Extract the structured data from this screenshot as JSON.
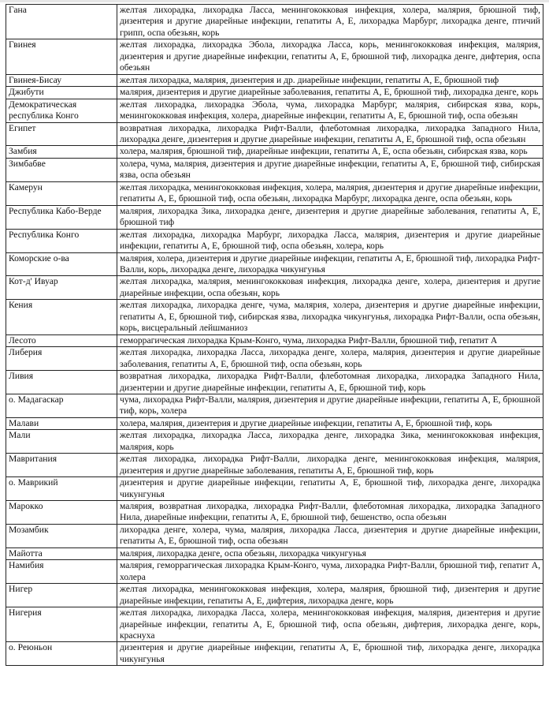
{
  "rows": [
    {
      "country": "Гана",
      "diseases": "желтая лихорадка, лихорадка Ласса, менингококковая инфекция, холера, малярия, брюшной тиф, дизентерия и другие диарейные инфекции, гепатиты А, Е, лихорадка Марбург, лихорадка денге, птичий грипп, оспа обезьян, корь"
    },
    {
      "country": "Гвинея",
      "diseases": "желтая лихорадка, лихорадка Эбола, лихорадка Ласса, корь, менингококковая инфекция, малярия, дизентерия и другие диарейные инфекции, гепатиты А, Е, брюшной тиф, лихорадка денге, дифтерия, оспа обезьян"
    },
    {
      "country": "Гвинея-Бисау",
      "diseases": "желтая лихорадка, малярия, дизентерия и др. диарейные инфекции, гепатиты А, Е, брюшной тиф"
    },
    {
      "country": "Джибути",
      "diseases": "малярия, дизентерия и другие диарейные заболевания, гепатиты А, Е, брюшной тиф, лихорадка денге, корь"
    },
    {
      "country": "Демократическая республика Конго",
      "diseases": "желтая лихорадка, лихорадка Эбола, чума, лихорадка Марбург, малярия, сибирская язва, корь, менингококковая инфекция, холера, диарейные инфекции, гепатиты А, Е, брюшной тиф, оспа обезьян"
    },
    {
      "country": "Египет",
      "diseases": "возвратная лихорадка, лихорадка Рифт-Валли, флеботомная лихорадка, лихорадка Западного Нила, лихорадка денге, дизентерия и другие диарейные инфекции, гепатиты А, Е, брюшной тиф, оспа обезьян"
    },
    {
      "country": "Замбия",
      "diseases": "холера, малярия, брюшной тиф, диарейные инфекции, гепатиты А, Е, оспа обезьян, сибирская язва, корь"
    },
    {
      "country": "Зимбабве",
      "diseases": "холера, чума, малярия, дизентерия и другие диарейные инфекции, гепатиты А, Е, брюшной тиф, сибирская язва, оспа обезьян"
    },
    {
      "country": "Камерун",
      "diseases": "желтая лихорадка, менингококковая инфекция, холера, малярия, дизентерия и другие диарейные инфекции, гепатиты А, Е, брюшной тиф, оспа обезьян, лихорадка Марбург, лихорадка денге, оспа обезьян, корь"
    },
    {
      "country": "Республика Кабо-Верде",
      "diseases": "малярия, лихорадка Зика, лихорадка денге, дизентерия и другие диарейные заболевания, гепатиты А, Е, брюшной тиф"
    },
    {
      "country": "Республика Конго",
      "diseases": "желтая лихорадка, лихорадка Марбург, лихорадка Ласса, малярия, дизентерия и другие диарейные инфекции, гепатиты А, Е, брюшной тиф, оспа обезьян, холера, корь"
    },
    {
      "country": "Коморские о-ва",
      "diseases": "малярия, холера, дизентерия и другие диарейные инфекции, гепатиты А, Е, брюшной тиф, лихорадка Рифт-Валли, корь, лихорадка денге, лихорадка чикунгунья"
    },
    {
      "country": "Кот-д' Ивуар",
      "diseases": "желтая лихорадка, малярия, менингококковая инфекция, лихорадка денге, холера, дизентерия и другие диарейные инфекции, оспа обезьян, корь"
    },
    {
      "country": "Кения",
      "diseases": "желтая лихорадка, лихорадка денге, чума, малярия, холера, дизентерия и другие диарейные инфекции, гепатиты А, Е, брюшной тиф, сибирская язва, лихорадка чикунгунья, лихорадка Рифт-Валли, оспа обезьян, корь, висцеральный лейшманиоз"
    },
    {
      "country": "Лесото",
      "diseases": "геморрагическая лихорадка Крым-Конго, чума, лихорадка Рифт-Валли, брюшной тиф, гепатит А"
    },
    {
      "country": "Либерия",
      "diseases": "желтая лихорадка, лихорадка Ласса, лихорадка денге, холера, малярия, дизентерия и другие диарейные заболевания, гепатиты А, Е, брюшной тиф, оспа обезьян, корь"
    },
    {
      "country": "Ливия",
      "diseases": "возвратная лихорадка, лихорадка Рифт-Валли, флеботомная лихорадка, лихорадка Западного Нила, дизентерии и другие диарейные инфекции, гепатиты А, Е, брюшной тиф, корь"
    },
    {
      "country": "о. Мадагаскар",
      "diseases": "чума, лихорадка Рифт-Валли, малярия, дизентерия и другие диарейные инфекции, гепатиты А, Е, брюшной тиф, корь, холера"
    },
    {
      "country": "Малави",
      "diseases": "холера, малярия, дизентерия и другие диарейные инфекции, гепатиты А, Е, брюшной тиф, корь"
    },
    {
      "country": "Мали",
      "diseases": "желтая лихорадка, лихорадка Ласса, лихорадка денге, лихорадка Зика, менингококковая инфекция, малярия, корь"
    },
    {
      "country": "Мавритания",
      "diseases": "желтая лихорадка, лихорадка Рифт-Валли, лихорадка денге, менингококковая инфекция, малярия, дизентерия и другие диарейные заболевания, гепатиты А, Е, брюшной тиф, корь"
    },
    {
      "country": "о. Маврикий",
      "diseases": "дизентерия и другие диарейные инфекции, гепатиты А, Е, брюшной тиф, лихорадка денге, лихорадка чикунгунья"
    },
    {
      "country": "Марокко",
      "diseases": "малярия, возвратная лихорадка, лихорадка Рифт-Валли, флеботомная лихорадка, лихорадка Западного Нила, диарейные инфекции, гепатиты А, Е, брюшной тиф, бешенство, оспа обезьян"
    },
    {
      "country": "Мозамбик",
      "diseases": "лихорадка денге, холера, чума, малярия, лихорадка Ласса, дизентерия и другие диарейные инфекции, гепатиты А, Е, брюшной тиф, оспа обезьян"
    },
    {
      "country": "Майотта",
      "diseases": "малярия, лихорадка денге, оспа обезьян, лихорадка чикунгунья"
    },
    {
      "country": "Намибия",
      "diseases": "малярия, геморрагическая лихорадка Крым-Конго, чума, лихорадка Рифт-Валли, брюшной тиф, гепатит А, холера"
    },
    {
      "country": "Нигер",
      "diseases": "желтая лихорадка, менингококковая инфекция, холера, малярия, брюшной тиф, дизентерия и другие диарейные инфекции, гепатиты А, Е, дифтерия, лихорадка денге, корь"
    },
    {
      "country": "Нигерия",
      "diseases": "желтая лихорадка, лихорадка Ласса, холера, менингококковая инфекция, малярия, дизентерия и другие диарейные инфекции, гепатиты А, Е, брюшной тиф, оспа обезьян, дифтерия, лихорадка денге, корь, краснуха"
    },
    {
      "country": "о. Реюньон",
      "diseases": "дизентерия и другие диарейные инфекции, гепатиты А, Е, брюшной тиф, лихорадка денге, лихорадка чикунгунья"
    }
  ]
}
